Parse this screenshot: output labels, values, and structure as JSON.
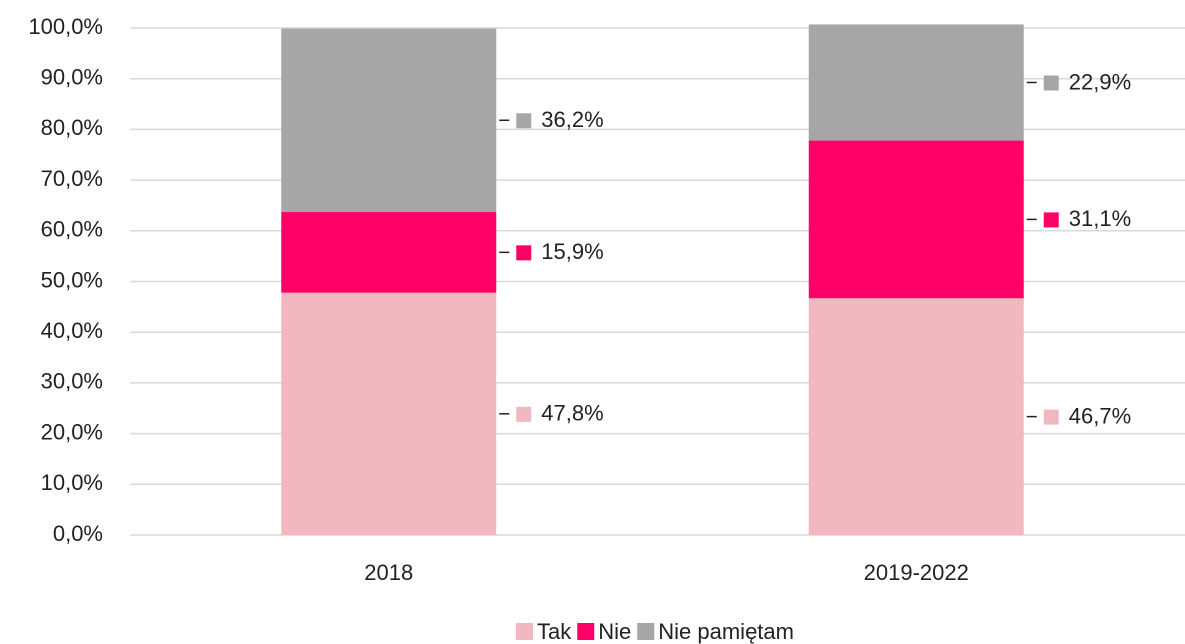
{
  "chart_data": {
    "type": "stacked_bar",
    "categories": [
      "2018",
      "2019-2022"
    ],
    "series": [
      {
        "name": "Tak",
        "color": "#f2b8c0",
        "values": [
          47.8,
          46.7
        ],
        "value_labels": [
          "47,8%",
          "46,7%"
        ]
      },
      {
        "name": "Nie",
        "color": "#ff0066",
        "values": [
          15.9,
          31.1
        ],
        "value_labels": [
          "15,9%",
          "31,1%"
        ]
      },
      {
        "name": "Nie pamiętam",
        "color": "#a6a6a6",
        "values": [
          36.2,
          22.9
        ],
        "value_labels": [
          "36,2%",
          "22,9%"
        ]
      }
    ],
    "ylim": [
      0,
      100
    ],
    "yticks": [
      {
        "value": 0,
        "label": "0,0%"
      },
      {
        "value": 10,
        "label": "10,0%"
      },
      {
        "value": 20,
        "label": "20,0%"
      },
      {
        "value": 30,
        "label": "30,0%"
      },
      {
        "value": 40,
        "label": "40,0%"
      },
      {
        "value": 50,
        "label": "50,0%"
      },
      {
        "value": 60,
        "label": "60,0%"
      },
      {
        "value": 70,
        "label": "70,0%"
      },
      {
        "value": 80,
        "label": "80,0%"
      },
      {
        "value": 90,
        "label": "90,0%"
      },
      {
        "value": 100,
        "label": "100,0%"
      }
    ],
    "grid": true,
    "legend": "bottom"
  }
}
